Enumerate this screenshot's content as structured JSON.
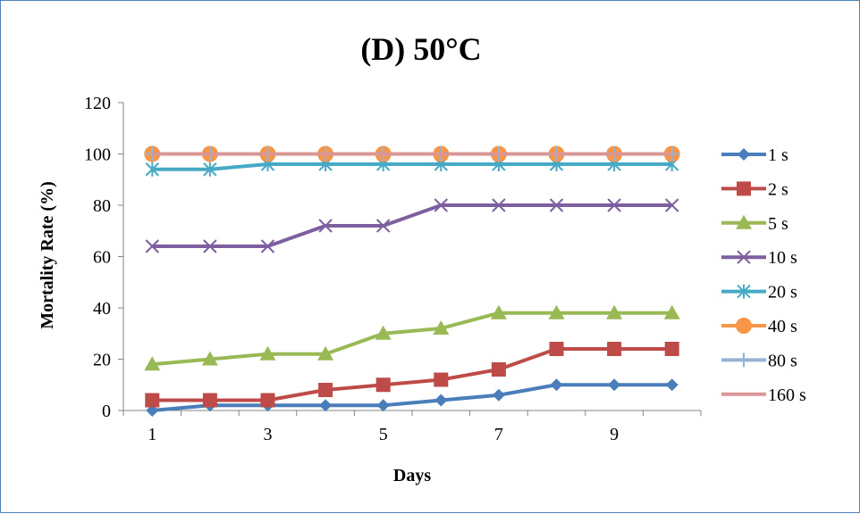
{
  "chart_data": {
    "type": "line",
    "title": "(D) 50°C",
    "xlabel": "Days",
    "ylabel": "Mortality Rate (%)",
    "x": [
      1,
      2,
      3,
      4,
      5,
      6,
      7,
      8,
      9,
      10
    ],
    "x_tick_labels": [
      "1",
      "3",
      "5",
      "7",
      "9"
    ],
    "x_tick_values": [
      1,
      3,
      5,
      7,
      9
    ],
    "xlim": [
      0.5,
      10.5
    ],
    "ylim": [
      0,
      120
    ],
    "y_ticks": [
      0,
      20,
      40,
      60,
      80,
      100,
      120
    ],
    "grid": false,
    "legend_position": "right",
    "series": [
      {
        "name": "1 s",
        "color": "#4a7ebb",
        "marker": "diamond",
        "values": [
          0,
          2,
          2,
          2,
          2,
          4,
          6,
          10,
          10,
          10
        ]
      },
      {
        "name": "2 s",
        "color": "#be4b48",
        "marker": "square",
        "values": [
          4,
          4,
          4,
          8,
          10,
          12,
          16,
          24,
          24,
          24
        ]
      },
      {
        "name": "5 s",
        "color": "#98b954",
        "marker": "triangle",
        "values": [
          18,
          20,
          22,
          22,
          30,
          32,
          38,
          38,
          38,
          38
        ]
      },
      {
        "name": "10 s",
        "color": "#7d5fa0",
        "marker": "x",
        "values": [
          64,
          64,
          64,
          72,
          72,
          80,
          80,
          80,
          80,
          80
        ]
      },
      {
        "name": "20 s",
        "color": "#46aac5",
        "marker": "asterisk",
        "values": [
          94,
          94,
          96,
          96,
          96,
          96,
          96,
          96,
          96,
          96
        ]
      },
      {
        "name": "40 s",
        "color": "#f79646",
        "marker": "circle",
        "values": [
          100,
          100,
          100,
          100,
          100,
          100,
          100,
          100,
          100,
          100
        ]
      },
      {
        "name": "80 s",
        "color": "#95b3d7",
        "marker": "plus",
        "values": [
          100,
          100,
          100,
          100,
          100,
          100,
          100,
          100,
          100,
          100
        ]
      },
      {
        "name": "160 s",
        "color": "#d99694",
        "marker": "none",
        "values": [
          100,
          100,
          100,
          100,
          100,
          100,
          100,
          100,
          100,
          100
        ]
      }
    ]
  }
}
